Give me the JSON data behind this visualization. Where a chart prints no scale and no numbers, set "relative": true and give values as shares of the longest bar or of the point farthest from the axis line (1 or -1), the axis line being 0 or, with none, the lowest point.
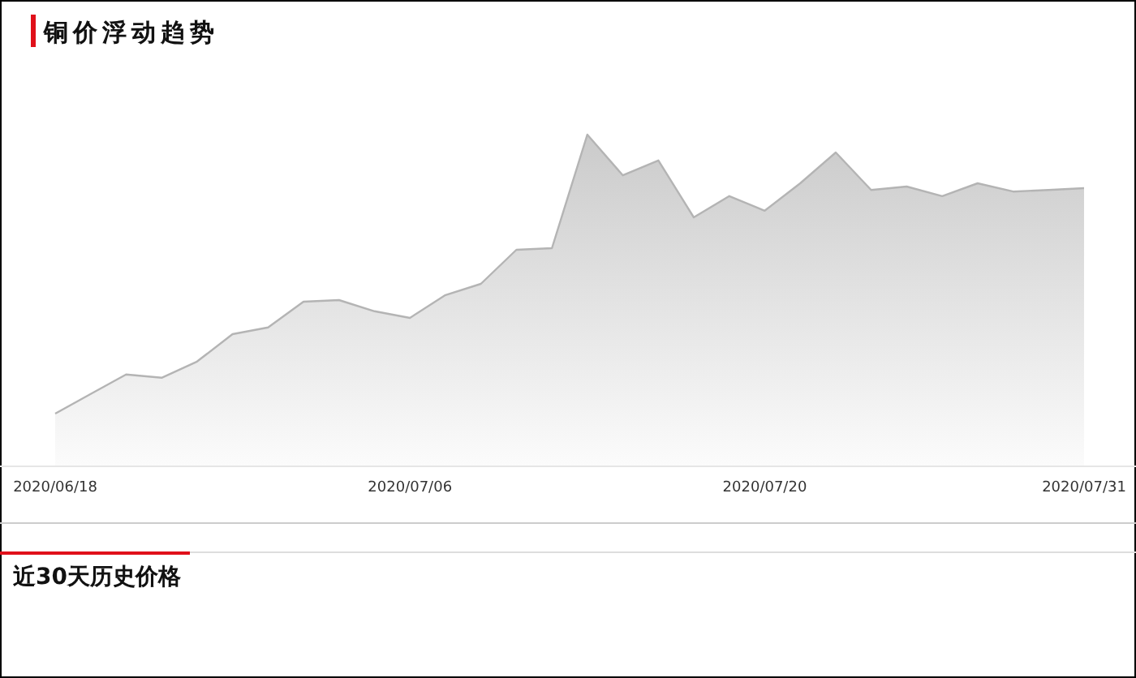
{
  "chart_data": {
    "type": "area",
    "title": "铜价浮动趋势",
    "relative": true,
    "color": "#b4b4b4",
    "categories": [
      "2020/06/18",
      null,
      null,
      null,
      null,
      null,
      null,
      null,
      null,
      null,
      "2020/07/06",
      null,
      null,
      null,
      null,
      null,
      null,
      null,
      null,
      null,
      "2020/07/20",
      null,
      null,
      null,
      null,
      null,
      null,
      null,
      null,
      "2020/07/31"
    ],
    "values": [
      0.157,
      0.216,
      0.275,
      0.265,
      0.314,
      0.397,
      0.417,
      0.495,
      0.5,
      0.466,
      0.446,
      0.515,
      0.549,
      0.652,
      0.657,
      1,
      0.877,
      0.922,
      0.75,
      0.814,
      0.77,
      0.853,
      0.946,
      0.833,
      0.843,
      0.814,
      0.853,
      0.828,
      0.833,
      0.838
    ],
    "annotations": [
      "近30天历史价格"
    ]
  }
}
